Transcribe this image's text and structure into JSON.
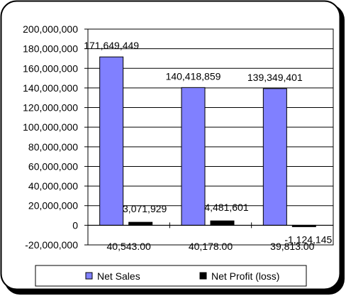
{
  "chart_data": {
    "type": "bar",
    "categories": [
      "40,543.00",
      "40,178.00",
      "39,813.00"
    ],
    "series": [
      {
        "name": "Net Sales",
        "values": [
          171649449,
          140418859,
          139349401
        ],
        "color": "#8080ff"
      },
      {
        "name": "Net Profit (loss)",
        "values": [
          3071929,
          4481601,
          -1124145
        ],
        "color": "#000000"
      }
    ],
    "value_labels": [
      [
        "171,649,449",
        "140,418,859",
        "139,349,401"
      ],
      [
        "3,071,929",
        "4,481,601",
        "-1,124,145"
      ]
    ],
    "y_ticks": [
      "200,000,000",
      "180,000,000",
      "160,000,000",
      "140,000,000",
      "120,000,000",
      "100,000,000",
      "80,000,000",
      "60,000,000",
      "40,000,000",
      "20,000,000",
      "0",
      "-20,000,000"
    ],
    "ylim": [
      -20000000,
      200000000
    ],
    "grid": true,
    "legend_position": "bottom"
  }
}
